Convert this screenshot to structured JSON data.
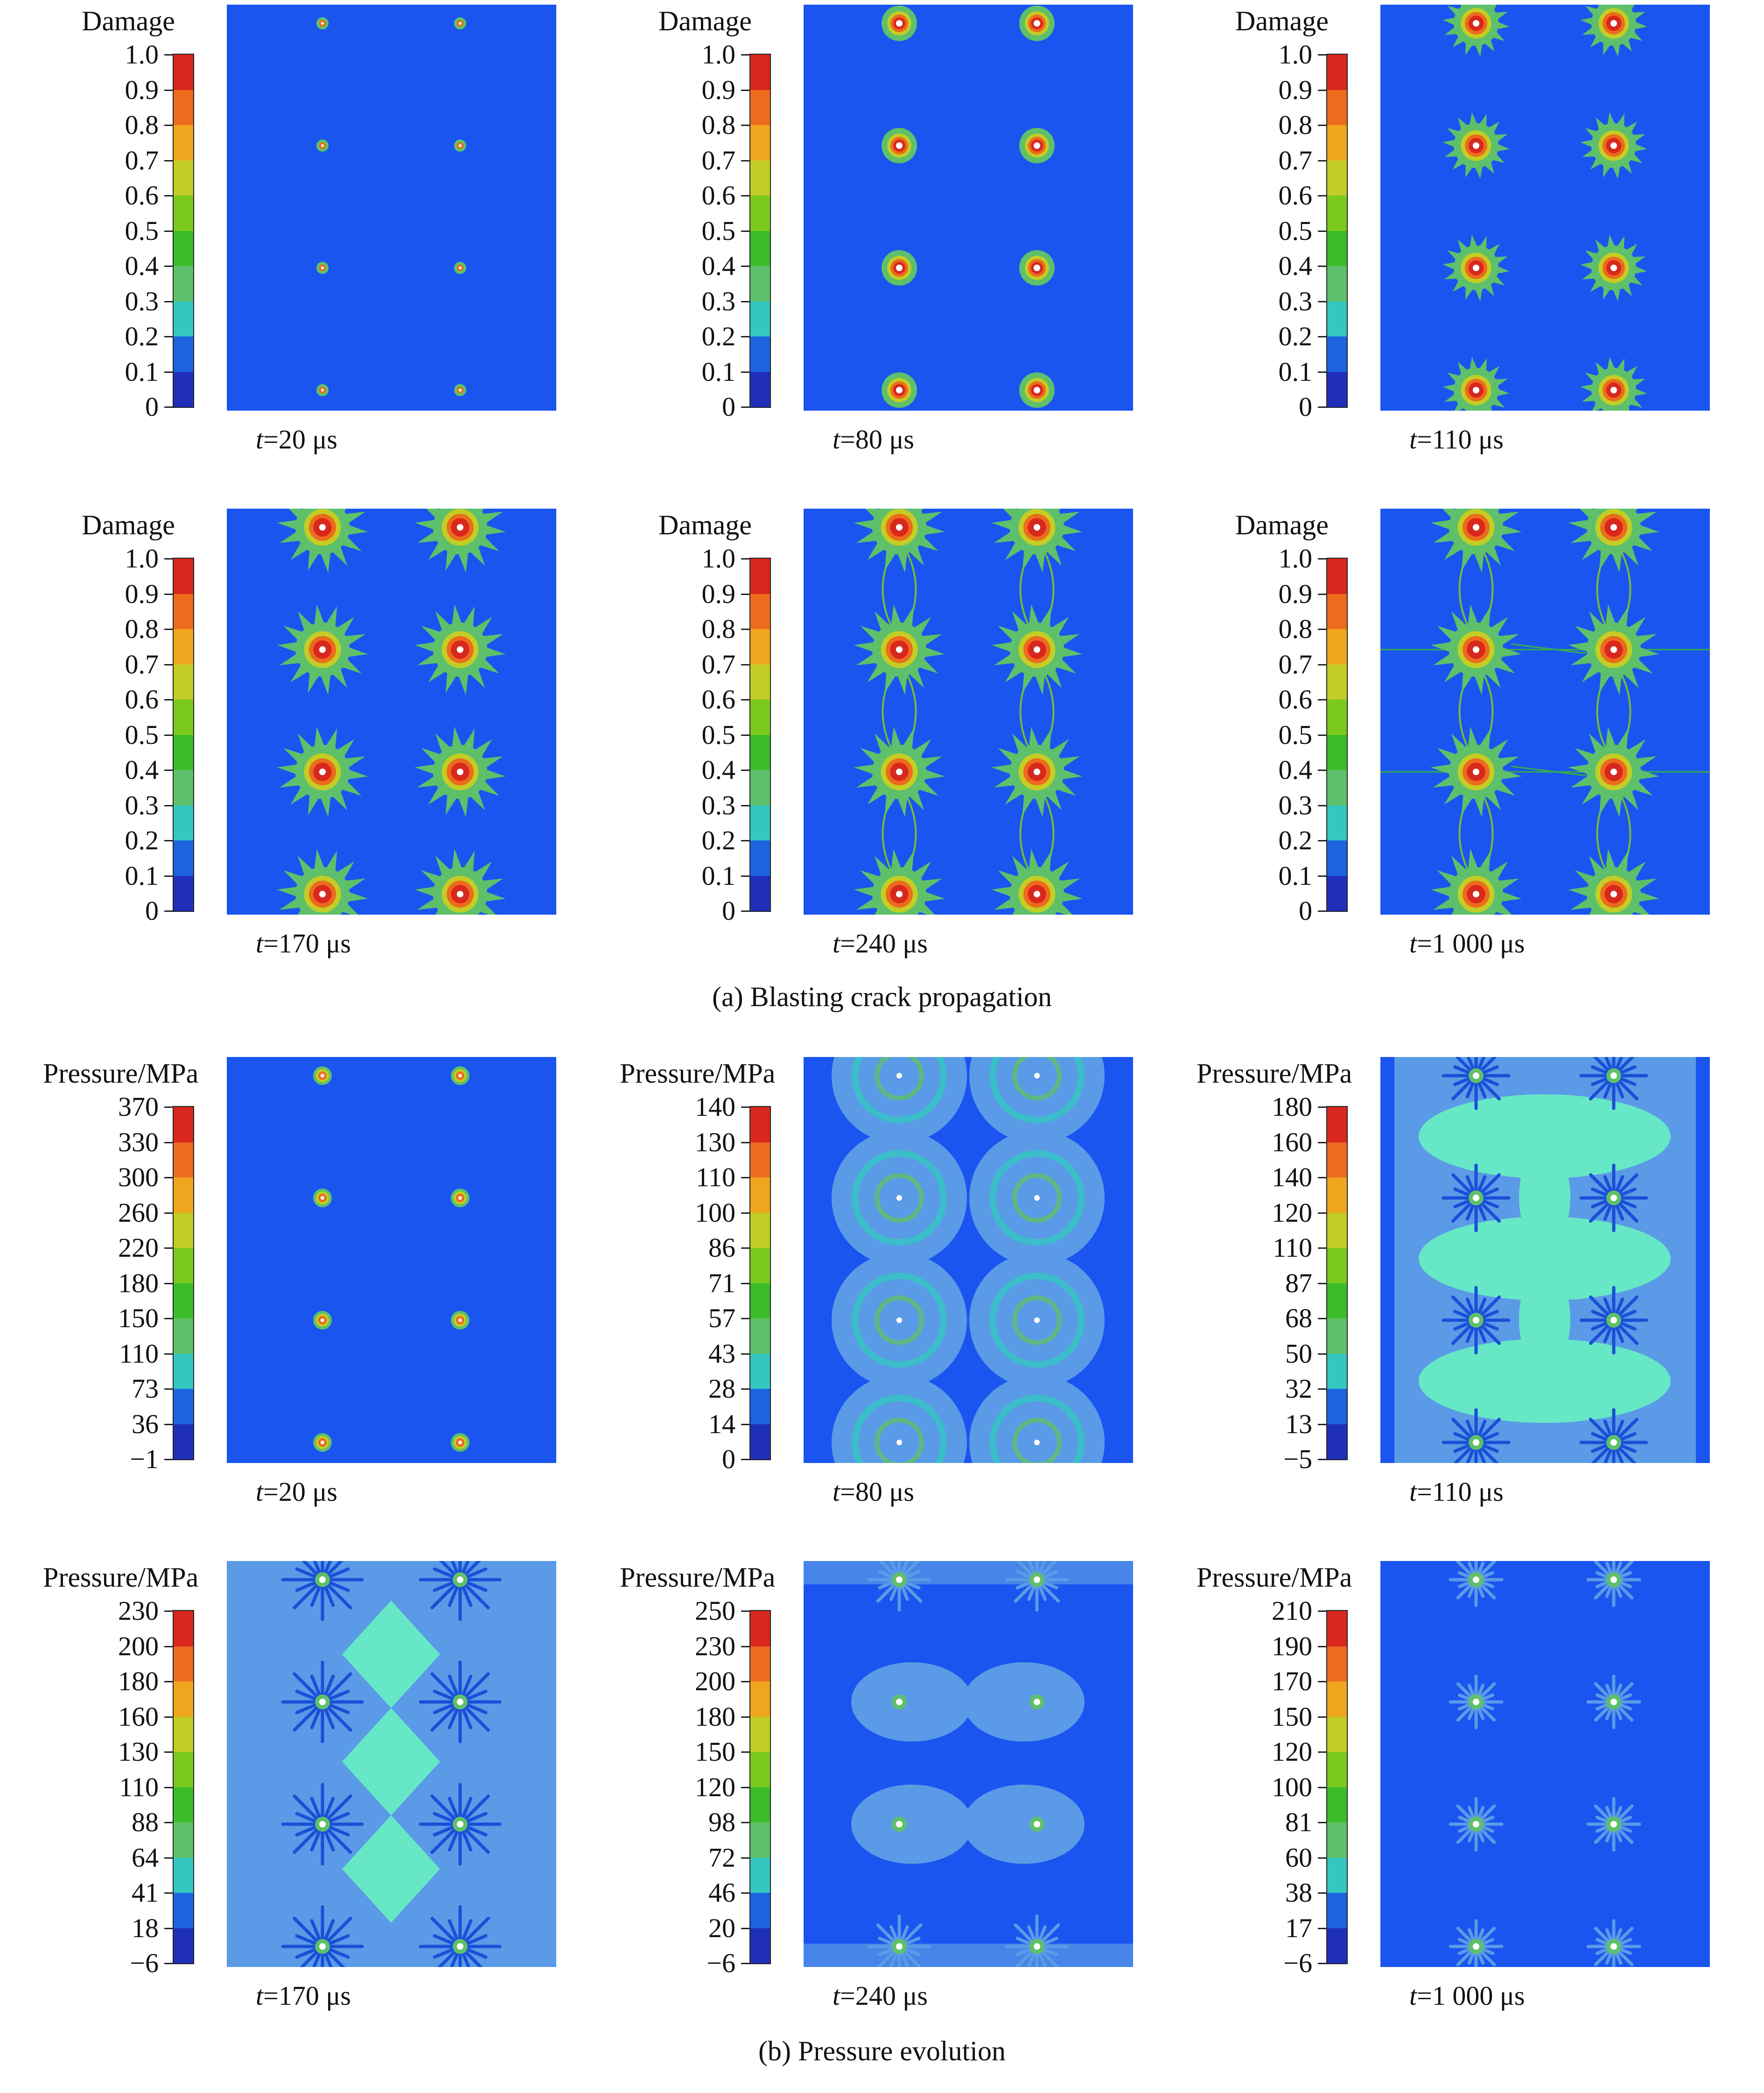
{
  "colors": {
    "background": "#1a55f0",
    "scale": [
      "#1f2fb8",
      "#1e63e0",
      "#33c7c2",
      "#5ec06a",
      "#3bbd2a",
      "#7cc91d",
      "#c4cd25",
      "#efa51d",
      "#ec6b1c",
      "#d8281d"
    ]
  },
  "caption_a": "(a) Blasting crack propagation",
  "caption_b": "(b) Pressure evolution",
  "panels": [
    {
      "scale_title": "Damage",
      "ticks": [
        "1.0",
        "0.9",
        "0.8",
        "0.7",
        "0.6",
        "0.5",
        "0.4",
        "0.3",
        "0.2",
        "0.1",
        "0"
      ],
      "t_label": "t",
      "t_value": "=20 μs",
      "stage": 1,
      "kind": "damage"
    },
    {
      "scale_title": "Damage",
      "ticks": [
        "1.0",
        "0.9",
        "0.8",
        "0.7",
        "0.6",
        "0.5",
        "0.4",
        "0.3",
        "0.2",
        "0.1",
        "0"
      ],
      "t_label": "t",
      "t_value": "=80 μs",
      "stage": 2,
      "kind": "damage"
    },
    {
      "scale_title": "Damage",
      "ticks": [
        "1.0",
        "0.9",
        "0.8",
        "0.7",
        "0.6",
        "0.5",
        "0.4",
        "0.3",
        "0.2",
        "0.1",
        "0"
      ],
      "t_label": "t",
      "t_value": "=110 μs",
      "stage": 3,
      "kind": "damage"
    },
    {
      "scale_title": "Damage",
      "ticks": [
        "1.0",
        "0.9",
        "0.8",
        "0.7",
        "0.6",
        "0.5",
        "0.4",
        "0.3",
        "0.2",
        "0.1",
        "0"
      ],
      "t_label": "t",
      "t_value": "=170 μs",
      "stage": 4,
      "kind": "damage"
    },
    {
      "scale_title": "Damage",
      "ticks": [
        "1.0",
        "0.9",
        "0.8",
        "0.7",
        "0.6",
        "0.5",
        "0.4",
        "0.3",
        "0.2",
        "0.1",
        "0"
      ],
      "t_label": "t",
      "t_value": "=240 μs",
      "stage": 5,
      "kind": "damage"
    },
    {
      "scale_title": "Damage",
      "ticks": [
        "1.0",
        "0.9",
        "0.8",
        "0.7",
        "0.6",
        "0.5",
        "0.4",
        "0.3",
        "0.2",
        "0.1",
        "0"
      ],
      "t_label": "t",
      "t_value": "=1 000 μs",
      "stage": 6,
      "kind": "damage"
    },
    {
      "scale_title": "Pressure/MPa",
      "ticks": [
        "370",
        "330",
        "300",
        "260",
        "220",
        "180",
        "150",
        "110",
        "73",
        "36",
        "−1"
      ],
      "t_label": "t",
      "t_value": "=20 μs",
      "stage": 1,
      "kind": "pressure"
    },
    {
      "scale_title": "Pressure/MPa",
      "ticks": [
        "140",
        "130",
        "110",
        "100",
        "86",
        "71",
        "57",
        "43",
        "28",
        "14",
        "0"
      ],
      "t_label": "t",
      "t_value": "=80 μs",
      "stage": 2,
      "kind": "pressure"
    },
    {
      "scale_title": "Pressure/MPa",
      "ticks": [
        "180",
        "160",
        "140",
        "120",
        "110",
        "87",
        "68",
        "50",
        "32",
        "13",
        "−5"
      ],
      "t_label": "t",
      "t_value": "=110 μs",
      "stage": 3,
      "kind": "pressure"
    },
    {
      "scale_title": "Pressure/MPa",
      "ticks": [
        "230",
        "200",
        "180",
        "160",
        "130",
        "110",
        "88",
        "64",
        "41",
        "18",
        "−6"
      ],
      "t_label": "t",
      "t_value": "=170 μs",
      "stage": 4,
      "kind": "pressure"
    },
    {
      "scale_title": "Pressure/MPa",
      "ticks": [
        "250",
        "230",
        "200",
        "180",
        "150",
        "120",
        "98",
        "72",
        "46",
        "20",
        "−6"
      ],
      "t_label": "t",
      "t_value": "=240 μs",
      "stage": 5,
      "kind": "pressure"
    },
    {
      "scale_title": "Pressure/MPa",
      "ticks": [
        "210",
        "190",
        "170",
        "150",
        "120",
        "100",
        "81",
        "60",
        "38",
        "17",
        "−6"
      ],
      "t_label": "t",
      "t_value": "=1 000 μs",
      "stage": 6,
      "kind": "pressure"
    }
  ]
}
